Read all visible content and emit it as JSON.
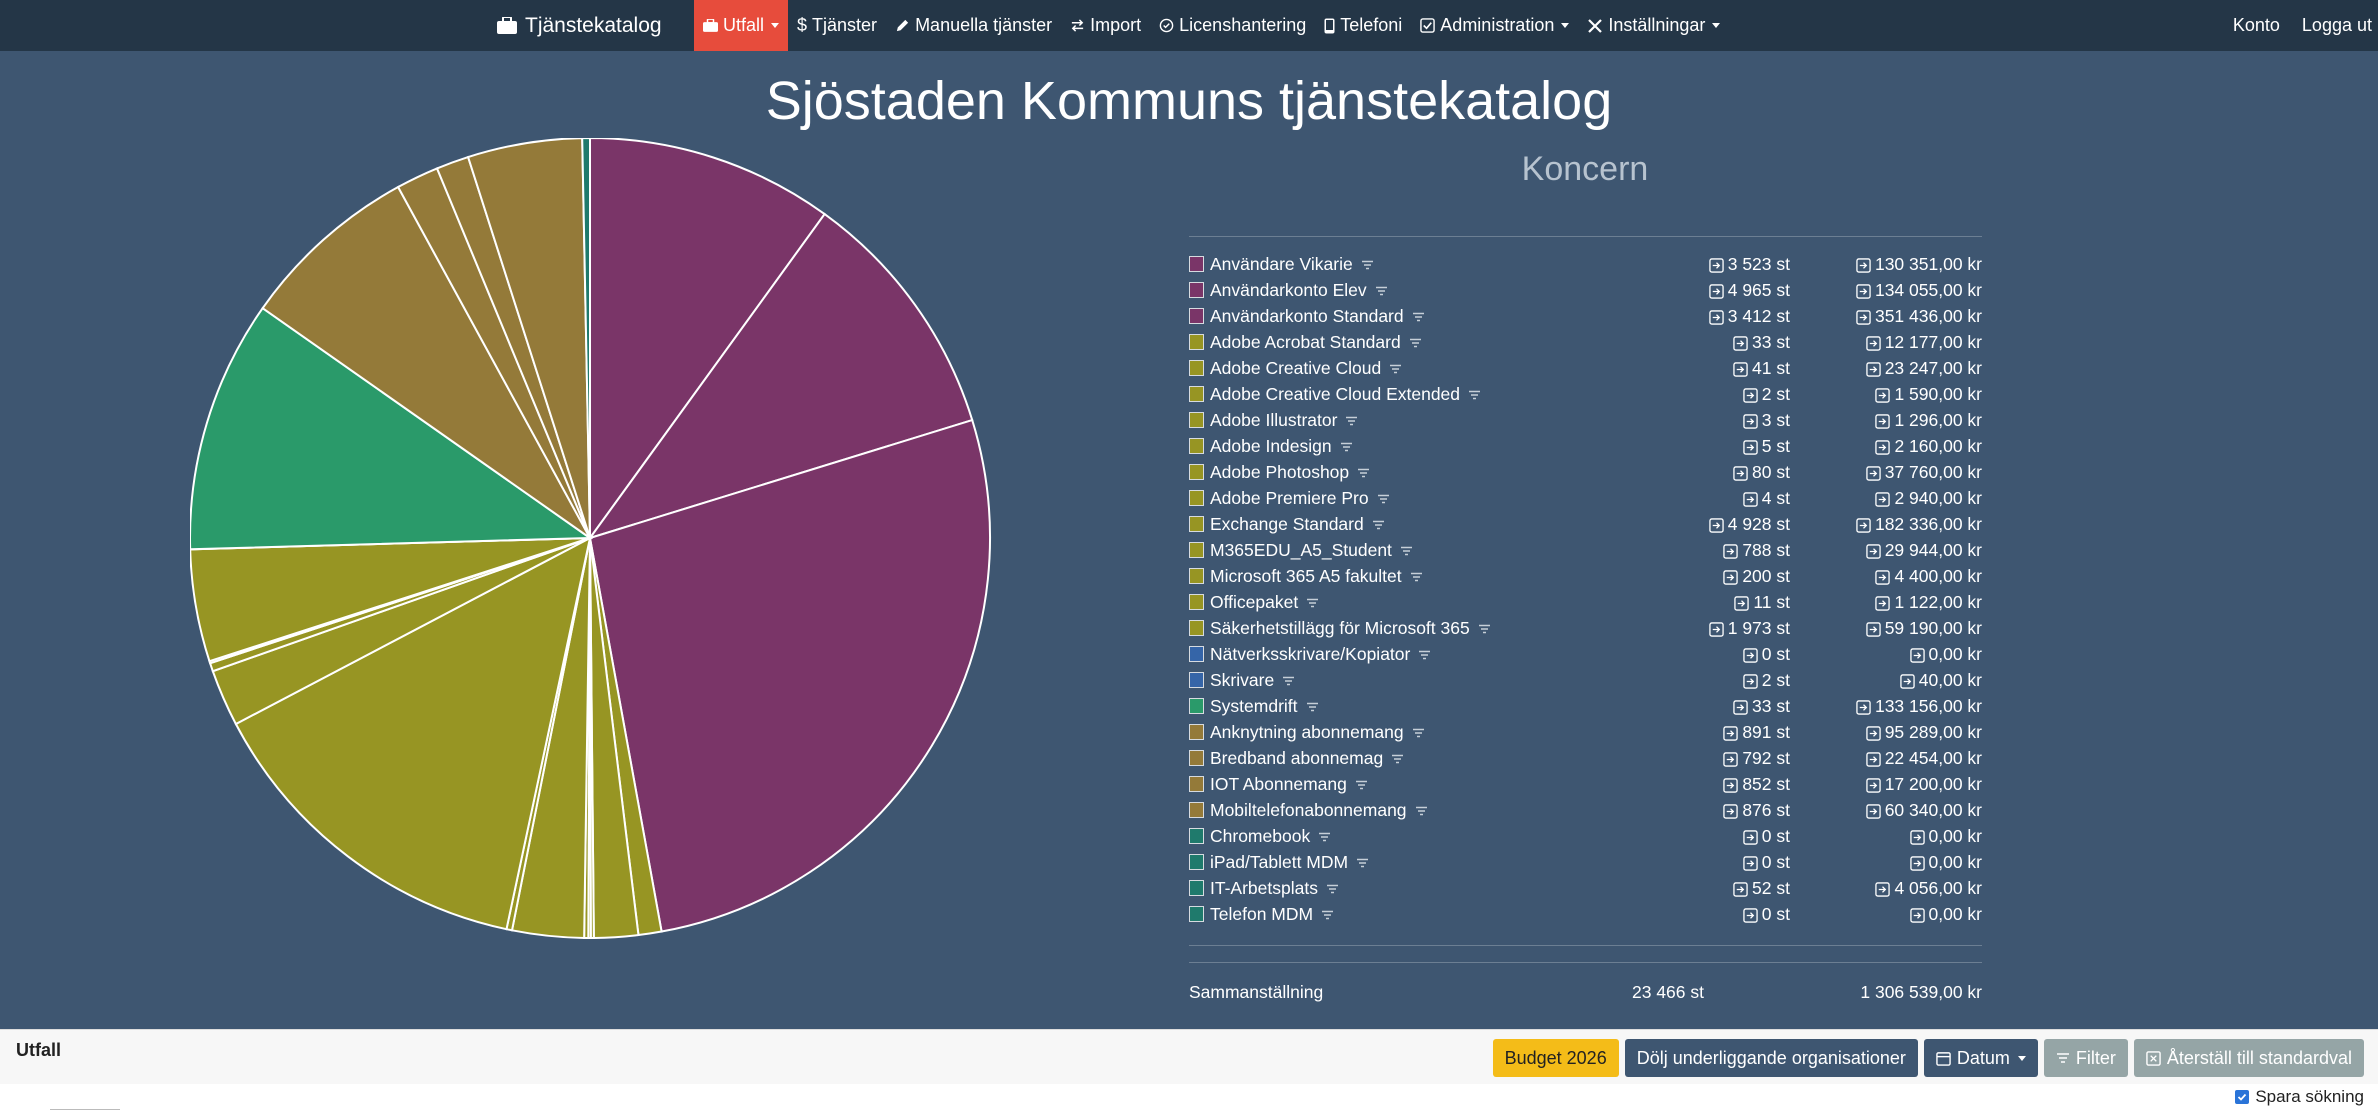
{
  "navbar": {
    "brand": "Tjänstekatalog",
    "items": [
      {
        "label": "Utfall",
        "icon": "briefcase-icon",
        "dropdown": true,
        "active": true
      },
      {
        "label": "Tjänster",
        "icon": "dollar-icon",
        "dropdown": false
      },
      {
        "label": "Manuella tjänster",
        "icon": "pencil-icon",
        "dropdown": false
      },
      {
        "label": "Import",
        "icon": "exchange-icon",
        "dropdown": false
      },
      {
        "label": "Licenshantering",
        "icon": "check-circle-icon",
        "dropdown": false
      },
      {
        "label": "Telefoni",
        "icon": "phone-icon",
        "dropdown": false
      },
      {
        "label": "Administration",
        "icon": "check-square-icon",
        "dropdown": true
      },
      {
        "label": "Inställningar",
        "icon": "tools-icon",
        "dropdown": true
      }
    ],
    "account": "Konto",
    "logout": "Logga ut"
  },
  "page": {
    "title": "Sjöstaden Kommuns tjänstekatalog",
    "subtitle": "Koncern"
  },
  "colors": {
    "purple": "#7a3568",
    "olive": "#979523",
    "blue": "#3565a8",
    "green": "#2a9a6a",
    "brown": "#947a39",
    "teal": "#1f7a6c"
  },
  "rows": [
    {
      "name": "Användare Vikarie",
      "qty": "3 523 st",
      "cost": "130 351,00 kr",
      "color": "#7a3568"
    },
    {
      "name": "Användarkonto Elev",
      "qty": "4 965 st",
      "cost": "134 055,00 kr",
      "color": "#7a3568"
    },
    {
      "name": "Användarkonto Standard",
      "qty": "3 412 st",
      "cost": "351 436,00 kr",
      "color": "#7a3568"
    },
    {
      "name": "Adobe Acrobat Standard",
      "qty": "33 st",
      "cost": "12 177,00 kr",
      "color": "#979523"
    },
    {
      "name": "Adobe Creative Cloud",
      "qty": "41 st",
      "cost": "23 247,00 kr",
      "color": "#979523"
    },
    {
      "name": "Adobe Creative Cloud Extended",
      "qty": "2 st",
      "cost": "1 590,00 kr",
      "color": "#979523"
    },
    {
      "name": "Adobe Illustrator",
      "qty": "3 st",
      "cost": "1 296,00 kr",
      "color": "#979523"
    },
    {
      "name": "Adobe Indesign",
      "qty": "5 st",
      "cost": "2 160,00 kr",
      "color": "#979523"
    },
    {
      "name": "Adobe Photoshop",
      "qty": "80 st",
      "cost": "37 760,00 kr",
      "color": "#979523"
    },
    {
      "name": "Adobe Premiere Pro",
      "qty": "4 st",
      "cost": "2 940,00 kr",
      "color": "#979523"
    },
    {
      "name": "Exchange Standard",
      "qty": "4 928 st",
      "cost": "182 336,00 kr",
      "color": "#979523"
    },
    {
      "name": "M365EDU_A5_Student",
      "qty": "788 st",
      "cost": "29 944,00 kr",
      "color": "#979523"
    },
    {
      "name": "Microsoft 365 A5 fakultet",
      "qty": "200 st",
      "cost": "4 400,00 kr",
      "color": "#979523"
    },
    {
      "name": "Officepaket",
      "qty": "11 st",
      "cost": "1 122,00 kr",
      "color": "#979523"
    },
    {
      "name": "Säkerhetstillägg för Microsoft 365",
      "qty": "1 973 st",
      "cost": "59 190,00 kr",
      "color": "#979523"
    },
    {
      "name": "Nätverksskrivare/Kopiator",
      "qty": "0 st",
      "cost": "0,00 kr",
      "color": "#3565a8"
    },
    {
      "name": "Skrivare",
      "qty": "2 st",
      "cost": "40,00 kr",
      "color": "#3565a8"
    },
    {
      "name": "Systemdrift",
      "qty": "33 st",
      "cost": "133 156,00 kr",
      "color": "#2a9a6a"
    },
    {
      "name": "Anknytning abonnemang",
      "qty": "891 st",
      "cost": "95 289,00 kr",
      "color": "#947a39"
    },
    {
      "name": "Bredband abonnemag",
      "qty": "792 st",
      "cost": "22 454,00 kr",
      "color": "#947a39"
    },
    {
      "name": "IOT Abonnemang",
      "qty": "852 st",
      "cost": "17 200,00 kr",
      "color": "#947a39"
    },
    {
      "name": "Mobiltelefonabonnemang",
      "qty": "876 st",
      "cost": "60 340,00 kr",
      "color": "#947a39"
    },
    {
      "name": "Chromebook",
      "qty": "0 st",
      "cost": "0,00 kr",
      "color": "#1f7a6c"
    },
    {
      "name": "iPad/Tablett MDM",
      "qty": "0 st",
      "cost": "0,00 kr",
      "color": "#1f7a6c"
    },
    {
      "name": "IT-Arbetsplats",
      "qty": "52 st",
      "cost": "4 056,00 kr",
      "color": "#1f7a6c"
    },
    {
      "name": "Telefon MDM",
      "qty": "0 st",
      "cost": "0,00 kr",
      "color": "#1f7a6c"
    }
  ],
  "summary": {
    "label": "Sammanställning",
    "total_qty": "23 466 st",
    "total_cost": "1 306 539,00 kr"
  },
  "bottombar": {
    "label": "Utfall",
    "budget_button": "Budget 2026",
    "hide_orgs_button": "Dölj underliggande organisationer",
    "date_button": "Datum",
    "filter_button": "Filter",
    "reset_button": "Återställ till standardval",
    "save_search_label": "Spara sökning",
    "save_search_checked": true
  },
  "chart_data": {
    "type": "pie",
    "categories": [
      "Användare Vikarie",
      "Användarkonto Elev",
      "Användarkonto Standard",
      "Adobe Acrobat Standard",
      "Adobe Creative Cloud",
      "Adobe Creative Cloud Extended",
      "Adobe Illustrator",
      "Adobe Indesign",
      "Adobe Photoshop",
      "Adobe Premiere Pro",
      "Exchange Standard",
      "M365EDU_A5_Student",
      "Microsoft 365 A5 fakultet",
      "Officepaket",
      "Säkerhetstillägg för Microsoft 365",
      "Nätverksskrivare/Kopiator",
      "Skrivare",
      "Systemdrift",
      "Anknytning abonnemang",
      "Bredband abonnemag",
      "IOT Abonnemang",
      "Mobiltelefonabonnemang",
      "Chromebook",
      "iPad/Tablett MDM",
      "IT-Arbetsplats",
      "Telefon MDM"
    ],
    "values": [
      130351,
      134055,
      351436,
      12177,
      23247,
      1590,
      1296,
      2160,
      37760,
      2940,
      182336,
      29944,
      4400,
      1122,
      59190,
      0,
      40,
      133156,
      95289,
      22454,
      17200,
      60340,
      0,
      0,
      4056,
      0
    ]
  }
}
